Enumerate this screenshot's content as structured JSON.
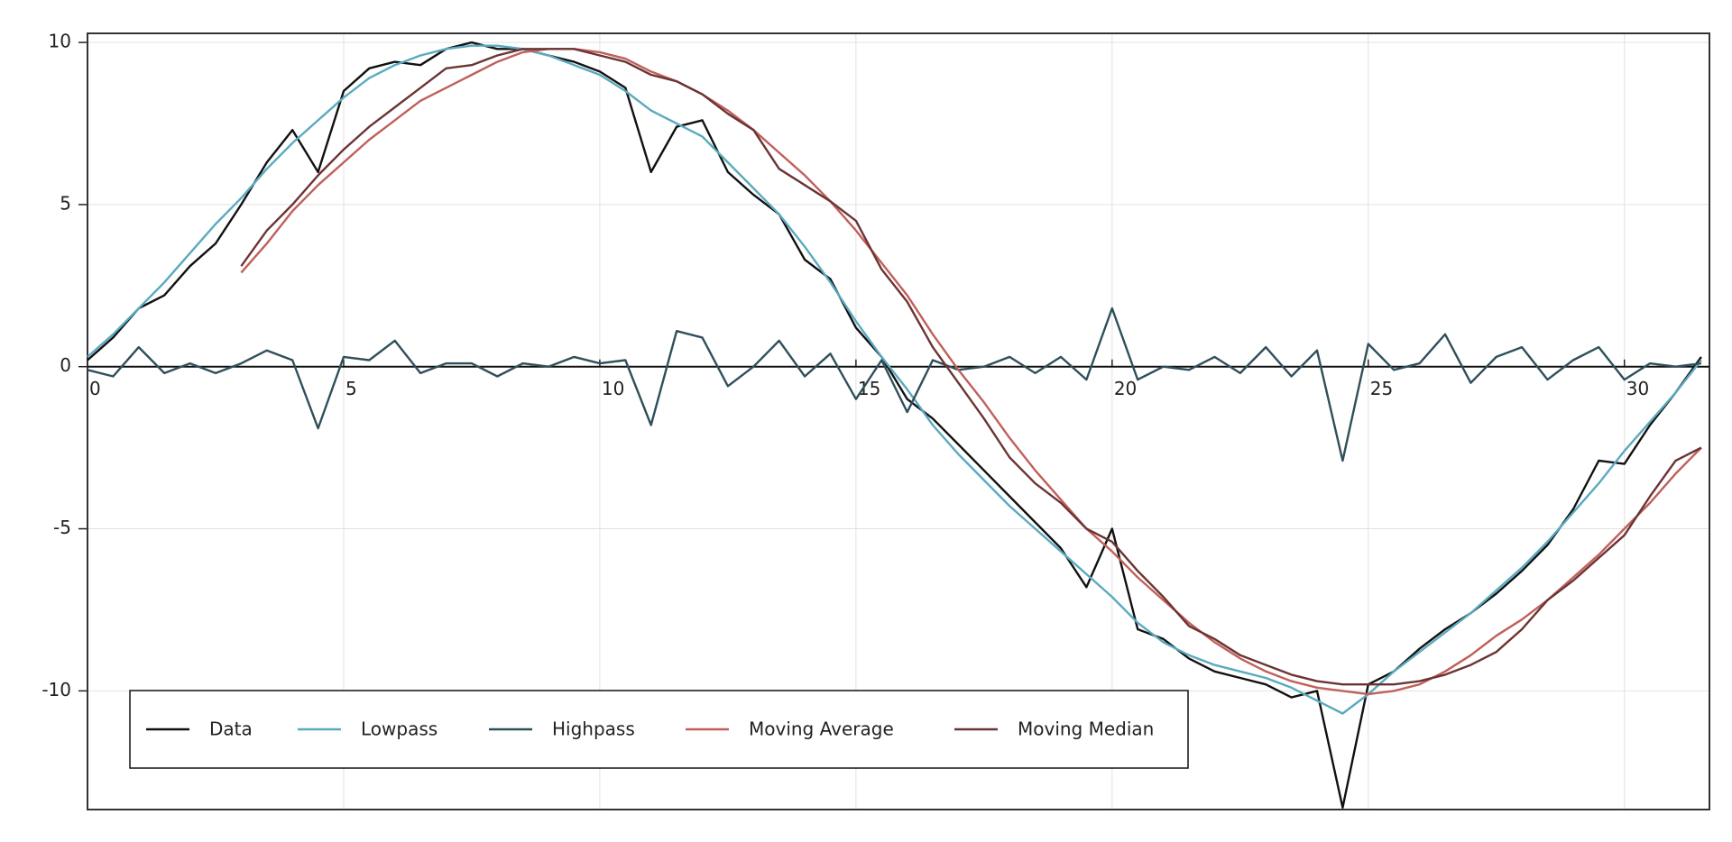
{
  "chart_data": {
    "type": "line",
    "x": [
      0,
      0.5,
      1,
      1.5,
      2,
      2.5,
      3,
      3.5,
      4,
      4.5,
      5,
      5.5,
      6,
      6.5,
      7,
      7.5,
      8,
      8.5,
      9,
      9.5,
      10,
      10.5,
      11,
      11.5,
      12,
      12.5,
      13,
      13.5,
      14,
      14.5,
      15,
      15.5,
      16,
      16.5,
      17,
      17.5,
      18,
      18.5,
      19,
      19.5,
      20,
      20.5,
      21,
      21.5,
      22,
      22.5,
      23,
      23.5,
      24,
      24.5,
      25,
      25.5,
      26,
      26.5,
      27,
      27.5,
      28,
      28.5,
      29,
      29.5,
      30,
      30.5,
      31,
      31.5
    ],
    "series": [
      {
        "name": "Data",
        "color": "#111111",
        "values": [
          0.2,
          0.9,
          1.8,
          2.2,
          3.1,
          3.8,
          5.0,
          6.3,
          7.3,
          6.0,
          8.5,
          9.2,
          9.4,
          9.3,
          9.8,
          10.0,
          9.8,
          9.8,
          9.6,
          9.4,
          9.1,
          8.6,
          6.0,
          7.4,
          7.6,
          6.0,
          5.3,
          4.7,
          3.3,
          2.7,
          1.2,
          0.3,
          -1.0,
          -1.6,
          -2.4,
          -3.2,
          -4.0,
          -4.8,
          -5.6,
          -6.8,
          -5.0,
          -8.1,
          -8.4,
          -9.0,
          -9.4,
          -9.6,
          -9.8,
          -10.2,
          -10.0,
          -13.6,
          -9.8,
          -9.4,
          -8.7,
          -8.1,
          -7.6,
          -7.0,
          -6.3,
          -5.5,
          -4.4,
          -2.9,
          -3.0,
          -1.8,
          -0.8,
          0.3
        ]
      },
      {
        "name": "Lowpass",
        "color": "#5aaabf",
        "values": [
          0.3,
          1.0,
          1.8,
          2.6,
          3.5,
          4.4,
          5.2,
          6.1,
          6.9,
          7.6,
          8.3,
          8.9,
          9.3,
          9.6,
          9.8,
          9.9,
          9.9,
          9.8,
          9.6,
          9.3,
          9.0,
          8.5,
          7.9,
          7.5,
          7.1,
          6.3,
          5.5,
          4.7,
          3.7,
          2.6,
          1.4,
          0.3,
          -0.7,
          -1.8,
          -2.7,
          -3.5,
          -4.3,
          -5.0,
          -5.7,
          -6.4,
          -7.1,
          -7.9,
          -8.5,
          -8.9,
          -9.2,
          -9.4,
          -9.6,
          -9.9,
          -10.3,
          -10.7,
          -10.1,
          -9.4,
          -8.8,
          -8.2,
          -7.6,
          -6.9,
          -6.2,
          -5.4,
          -4.5,
          -3.6,
          -2.6,
          -1.7,
          -0.8,
          0.2
        ]
      },
      {
        "name": "Highpass",
        "color": "#2f4f5a",
        "values": [
          -0.1,
          -0.3,
          0.6,
          -0.2,
          0.1,
          -0.2,
          0.1,
          0.5,
          0.2,
          -1.9,
          0.3,
          0.2,
          0.8,
          -0.2,
          0.1,
          0.1,
          -0.3,
          0.1,
          0.0,
          0.3,
          0.1,
          0.2,
          -1.8,
          1.1,
          0.9,
          -0.6,
          0.0,
          0.8,
          -0.3,
          0.4,
          -1.0,
          0.2,
          -1.4,
          0.2,
          -0.1,
          0.0,
          0.3,
          -0.2,
          0.3,
          -0.4,
          1.8,
          -0.4,
          0.0,
          -0.1,
          0.3,
          -0.2,
          0.6,
          -0.3,
          0.5,
          -2.9,
          0.7,
          -0.1,
          0.1,
          1.0,
          -0.5,
          0.3,
          0.6,
          -0.4,
          0.2,
          0.6,
          -0.4,
          0.1,
          0.0,
          0.1
        ]
      },
      {
        "name": "Moving Average",
        "color": "#c0605a",
        "values": [
          null,
          null,
          null,
          null,
          null,
          null,
          2.9,
          3.8,
          4.8,
          5.6,
          6.3,
          7.0,
          7.6,
          8.2,
          8.6,
          9.0,
          9.4,
          9.7,
          9.8,
          9.8,
          9.7,
          9.5,
          9.1,
          8.8,
          8.4,
          7.9,
          7.3,
          6.6,
          5.9,
          5.1,
          4.2,
          3.2,
          2.2,
          1.0,
          -0.1,
          -1.1,
          -2.2,
          -3.2,
          -4.1,
          -5.0,
          -5.7,
          -6.5,
          -7.2,
          -7.9,
          -8.5,
          -9.0,
          -9.4,
          -9.7,
          -9.9,
          -10.0,
          -10.1,
          -10.0,
          -9.8,
          -9.4,
          -8.9,
          -8.3,
          -7.8,
          -7.2,
          -6.5,
          -5.8,
          -5.0,
          -4.2,
          -3.3,
          -2.5
        ]
      },
      {
        "name": "Moving Median",
        "color": "#6b3434",
        "values": [
          null,
          null,
          null,
          null,
          null,
          null,
          3.1,
          4.2,
          5.0,
          5.9,
          6.7,
          7.4,
          8.0,
          8.6,
          9.2,
          9.3,
          9.6,
          9.8,
          9.8,
          9.8,
          9.6,
          9.4,
          9.0,
          8.8,
          8.4,
          7.8,
          7.3,
          6.1,
          5.6,
          5.1,
          4.5,
          3.0,
          2.0,
          0.6,
          -0.5,
          -1.6,
          -2.8,
          -3.6,
          -4.2,
          -5.0,
          -5.4,
          -6.3,
          -7.1,
          -8.0,
          -8.4,
          -8.9,
          -9.2,
          -9.5,
          -9.7,
          -9.8,
          -9.8,
          -9.8,
          -9.7,
          -9.5,
          -9.2,
          -8.8,
          -8.1,
          -7.2,
          -6.6,
          -5.9,
          -5.2,
          -4.0,
          -2.9,
          -2.5
        ]
      }
    ],
    "xlim": [
      0,
      31.66
    ],
    "ylim": [
      -13.66,
      10.28
    ],
    "xticks": [
      0,
      5,
      10,
      15,
      20,
      25,
      30
    ],
    "yticks": [
      -10,
      -5,
      0,
      5,
      10
    ],
    "grid": true,
    "legend": "lower left"
  }
}
